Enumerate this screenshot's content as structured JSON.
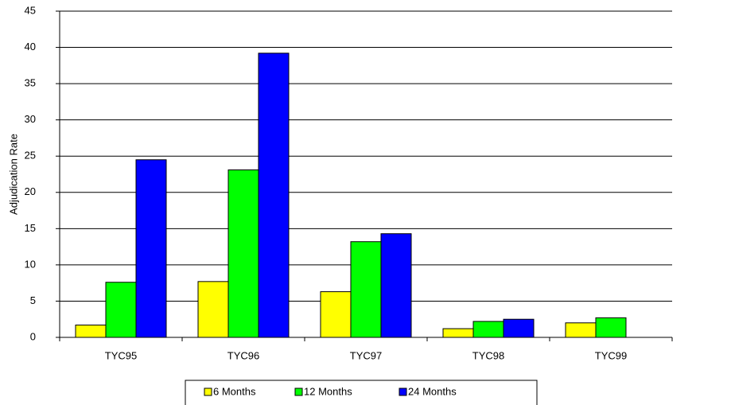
{
  "chart_data": {
    "type": "bar",
    "y_label": "Adjudication Rate",
    "categories": [
      "TYC95",
      "TYC96",
      "TYC97",
      "TYC98",
      "TYC99"
    ],
    "series": [
      {
        "name": "6 Months",
        "color": "#ffff00",
        "values": [
          1.7,
          7.7,
          6.3,
          1.2,
          2.0
        ]
      },
      {
        "name": "12 Months",
        "color": "#00ff00",
        "values": [
          7.6,
          23.1,
          13.2,
          2.2,
          2.7
        ]
      },
      {
        "name": "24 Months",
        "color": "#0000ff",
        "values": [
          24.5,
          39.2,
          14.3,
          2.5,
          null
        ]
      }
    ],
    "ylim": [
      0,
      45
    ],
    "yticks": [
      0,
      5,
      10,
      15,
      20,
      25,
      30,
      35,
      40,
      45
    ],
    "grid": true,
    "legend": "bottom"
  }
}
